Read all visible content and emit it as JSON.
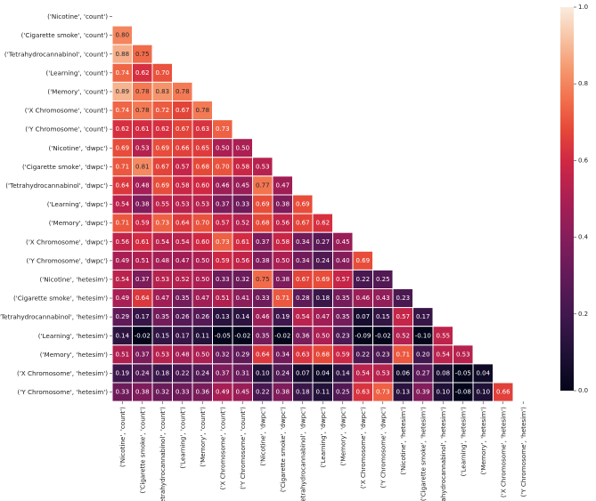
{
  "chart_data": {
    "type": "heatmap",
    "title": "",
    "xlabel": "",
    "ylabel": "",
    "labels": [
      "('Nicotine', 'count')",
      "('Cigarette smoke', 'count')",
      "('Tetrahydrocannabinol', 'count')",
      "('Learning', 'count')",
      "('Memory', 'count')",
      "('X Chromosome', 'count')",
      "('Y Chromosome', 'count')",
      "('Nicotine', 'dwpc')",
      "('Cigarette smoke', 'dwpc')",
      "('Tetrahydrocannabinol', 'dwpc')",
      "('Learning', 'dwpc')",
      "('Memory', 'dwpc')",
      "('X Chromosome', 'dwpc')",
      "('Y Chromosome', 'dwpc')",
      "('Nicotine', 'hetesim')",
      "('Cigarette smoke', 'hetesim')",
      "('Tetrahydrocannabinol', 'hetesim')",
      "('Learning', 'hetesim')",
      "('Memory', 'hetesim')",
      "('X Chromosome', 'hetesim')",
      "('Y Chromosome', 'hetesim')"
    ],
    "matrix_lower": [
      [],
      [
        "0.80"
      ],
      [
        "0.88",
        "0.75"
      ],
      [
        "0.74",
        "0.62",
        "0.70"
      ],
      [
        "0.89",
        "0.78",
        "0.83",
        "0.78"
      ],
      [
        "0.74",
        "0.78",
        "0.72",
        "0.67",
        "0.78"
      ],
      [
        "0.62",
        "0.61",
        "0.62",
        "0.67",
        "0.63",
        "0.73"
      ],
      [
        "0.69",
        "0.53",
        "0.69",
        "0.66",
        "0.65",
        "0.50",
        "0.50"
      ],
      [
        "0.71",
        "0.81",
        "0.67",
        "0.57",
        "0.68",
        "0.70",
        "0.58",
        "0.53"
      ],
      [
        "0.64",
        "0.48",
        "0.69",
        "0.58",
        "0.60",
        "0.46",
        "0.45",
        "0.77",
        "0.47"
      ],
      [
        "0.54",
        "0.38",
        "0.55",
        "0.53",
        "0.53",
        "0.37",
        "0.33",
        "0.69",
        "0.38",
        "0.69"
      ],
      [
        "0.71",
        "0.59",
        "0.73",
        "0.64",
        "0.70",
        "0.57",
        "0.52",
        "0.68",
        "0.56",
        "0.67",
        "0.62"
      ],
      [
        "0.56",
        "0.61",
        "0.54",
        "0.54",
        "0.60",
        "0.73",
        "0.61",
        "0.37",
        "0.58",
        "0.34",
        "0.27",
        "0.45"
      ],
      [
        "0.49",
        "0.51",
        "0.48",
        "0.47",
        "0.50",
        "0.59",
        "0.56",
        "0.38",
        "0.50",
        "0.34",
        "0.24",
        "0.40",
        "0.69"
      ],
      [
        "0.54",
        "0.37",
        "0.53",
        "0.52",
        "0.50",
        "0.33",
        "0.32",
        "0.75",
        "0.38",
        "0.67",
        "0.69",
        "0.57",
        "0.22",
        "0.25"
      ],
      [
        "0.49",
        "0.64",
        "0.47",
        "0.35",
        "0.47",
        "0.51",
        "0.41",
        "0.33",
        "0.71",
        "0.28",
        "0.18",
        "0.35",
        "0.46",
        "0.43",
        "0.23"
      ],
      [
        "0.29",
        "0.17",
        "0.35",
        "0.26",
        "0.26",
        "0.13",
        "0.14",
        "0.46",
        "0.19",
        "0.54",
        "0.47",
        "0.35",
        "0.07",
        "0.15",
        "0.57",
        "0.17"
      ],
      [
        "0.14",
        "-0.02",
        "0.15",
        "0.17",
        "0.11",
        "-0.05",
        "-0.02",
        "0.35",
        "-0.02",
        "0.36",
        "0.50",
        "0.23",
        "-0.09",
        "-0.02",
        "0.52",
        "-0.10",
        "0.55"
      ],
      [
        "0.51",
        "0.37",
        "0.53",
        "0.48",
        "0.50",
        "0.32",
        "0.29",
        "0.64",
        "0.34",
        "0.63",
        "0.68",
        "0.59",
        "0.22",
        "0.23",
        "0.71",
        "0.20",
        "0.54",
        "0.53"
      ],
      [
        "0.19",
        "0.24",
        "0.18",
        "0.22",
        "0.24",
        "0.37",
        "0.31",
        "0.10",
        "0.24",
        "0.07",
        "0.04",
        "0.14",
        "0.54",
        "0.53",
        "0.06",
        "0.27",
        "0.08",
        "-0.05",
        "0.04"
      ],
      [
        "0.33",
        "0.38",
        "0.32",
        "0.33",
        "0.36",
        "0.49",
        "0.45",
        "0.22",
        "0.38",
        "0.18",
        "0.11",
        "0.25",
        "0.63",
        "0.73",
        "0.13",
        "0.39",
        "0.10",
        "-0.08",
        "0.10",
        "0.66"
      ]
    ],
    "colorbar": {
      "min": 0.0,
      "max": 1.0,
      "ticks": [
        "0.0",
        "0.2",
        "0.4",
        "0.6",
        "0.8",
        "1.0"
      ],
      "colormap": "rocket"
    },
    "grid": true,
    "legend": "right"
  }
}
